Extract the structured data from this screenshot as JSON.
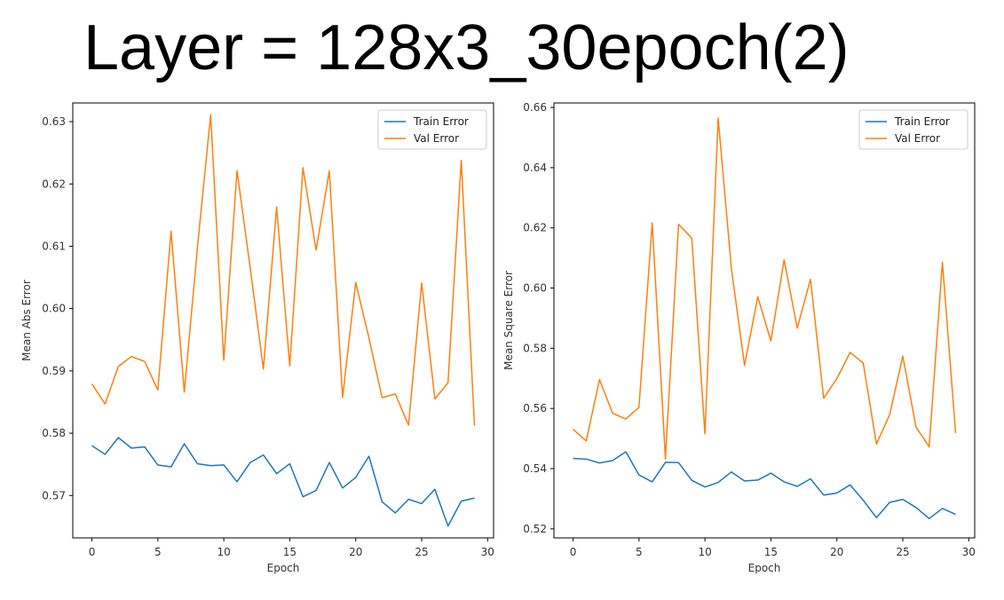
{
  "title": "Layer = 128x3_30epoch(2)",
  "colors": {
    "train": "#1f77b4",
    "val": "#ff7f0e"
  },
  "chart_data": [
    {
      "type": "line",
      "xlabel": "Epoch",
      "ylabel": "Mean Abs Error",
      "xlim": [
        -1.45,
        30.45
      ],
      "ylim": [
        0.5632,
        0.633
      ],
      "xticks": [
        0,
        5,
        10,
        15,
        20,
        25,
        30
      ],
      "yticks": [
        0.57,
        0.58,
        0.59,
        0.6,
        0.61,
        0.62,
        0.63
      ],
      "ytick_labels": [
        "0.57",
        "0.58",
        "0.59",
        "0.60",
        "0.61",
        "0.62",
        "0.63"
      ],
      "legend_loc": "top-right",
      "x": [
        0,
        1,
        2,
        3,
        4,
        5,
        6,
        7,
        8,
        9,
        10,
        11,
        12,
        13,
        14,
        15,
        16,
        17,
        18,
        19,
        20,
        21,
        22,
        23,
        24,
        25,
        26,
        27,
        28,
        29
      ],
      "series": [
        {
          "name": "Train Error",
          "values": [
            0.578,
            0.5766,
            0.5793,
            0.5776,
            0.5778,
            0.5749,
            0.5746,
            0.5783,
            0.5751,
            0.5748,
            0.5749,
            0.5722,
            0.5753,
            0.5765,
            0.5735,
            0.5751,
            0.5698,
            0.5708,
            0.5753,
            0.5712,
            0.5729,
            0.5763,
            0.569,
            0.5672,
            0.5694,
            0.5687,
            0.571,
            0.5651,
            0.5691,
            0.5696
          ]
        },
        {
          "name": "Val Error",
          "values": [
            0.5879,
            0.5847,
            0.5907,
            0.5923,
            0.5915,
            0.5869,
            0.6124,
            0.5866,
            0.6098,
            0.6311,
            0.5917,
            0.6221,
            0.6065,
            0.5903,
            0.6163,
            0.5908,
            0.6226,
            0.6094,
            0.6221,
            0.5857,
            0.6042,
            0.5953,
            0.5857,
            0.5863,
            0.5813,
            0.6041,
            0.5855,
            0.5881,
            0.6238,
            0.5812
          ]
        }
      ]
    },
    {
      "type": "line",
      "xlabel": "Epoch",
      "ylabel": "Mean Square Error",
      "xlim": [
        -1.45,
        30.45
      ],
      "ylim": [
        0.517,
        0.6615
      ],
      "xticks": [
        0,
        5,
        10,
        15,
        20,
        25,
        30
      ],
      "yticks": [
        0.52,
        0.54,
        0.56,
        0.58,
        0.6,
        0.62,
        0.64,
        0.66
      ],
      "ytick_labels": [
        "0.52",
        "0.54",
        "0.56",
        "0.58",
        "0.60",
        "0.62",
        "0.64",
        "0.66"
      ],
      "legend_loc": "top-right",
      "x": [
        0,
        1,
        2,
        3,
        4,
        5,
        6,
        7,
        8,
        9,
        10,
        11,
        12,
        13,
        14,
        15,
        16,
        17,
        18,
        19,
        20,
        21,
        22,
        23,
        24,
        25,
        26,
        27,
        28,
        29
      ],
      "series": [
        {
          "name": "Train Error",
          "values": [
            0.5434,
            0.5432,
            0.5419,
            0.5427,
            0.5456,
            0.5379,
            0.5356,
            0.5421,
            0.542,
            0.5361,
            0.5339,
            0.5354,
            0.5389,
            0.5359,
            0.5362,
            0.5385,
            0.5356,
            0.5341,
            0.5366,
            0.5312,
            0.5319,
            0.5346,
            0.5295,
            0.5237,
            0.5288,
            0.5298,
            0.5271,
            0.5234,
            0.5268,
            0.5248
          ]
        },
        {
          "name": "Val Error",
          "values": [
            0.5531,
            0.5492,
            0.5696,
            0.5584,
            0.5565,
            0.5604,
            0.6217,
            0.5432,
            0.6212,
            0.6166,
            0.5516,
            0.6565,
            0.6065,
            0.5743,
            0.5971,
            0.5824,
            0.6094,
            0.5867,
            0.6029,
            0.5634,
            0.5699,
            0.5786,
            0.5751,
            0.5482,
            0.5579,
            0.5774,
            0.5538,
            0.5473,
            0.6086,
            0.5518
          ]
        }
      ]
    }
  ]
}
